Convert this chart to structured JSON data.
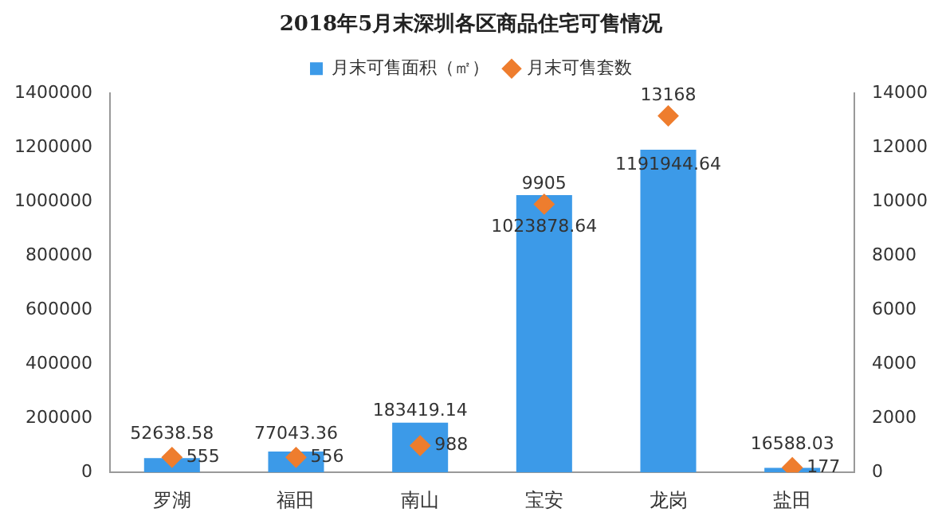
{
  "chart_data": {
    "type": "bar",
    "title": "2018年5月末深圳各区商品住宅可售情况",
    "categories": [
      "罗湖",
      "福田",
      "南山",
      "宝安",
      "龙岗",
      "盐田"
    ],
    "series": [
      {
        "name": "月末可售面积（㎡）",
        "color": "#3c9ae8",
        "values": [
          52638.58,
          77043.36,
          183419.14,
          1023878.64,
          1191944.64,
          16588.03
        ]
      },
      {
        "name": "月末可售套数",
        "type": "scatter",
        "axis": "y2",
        "color": "#ee7d2e",
        "x": [
          "罗湖",
          "福田",
          "南山",
          "宝安",
          "龙岗",
          "盐田"
        ],
        "values": [
          555,
          556,
          988,
          9905,
          13168,
          177
        ]
      }
    ],
    "ylim": [
      0,
      1400000
    ],
    "yticks": [
      0,
      200000,
      400000,
      600000,
      800000,
      1000000,
      1200000,
      1400000
    ],
    "y2lim": [
      0,
      14000
    ],
    "y2ticks": [
      0,
      2000,
      4000,
      6000,
      8000,
      10000,
      12000,
      14000
    ],
    "marker": "diamond",
    "grid": false,
    "legend": "top",
    "data_labels": true
  }
}
